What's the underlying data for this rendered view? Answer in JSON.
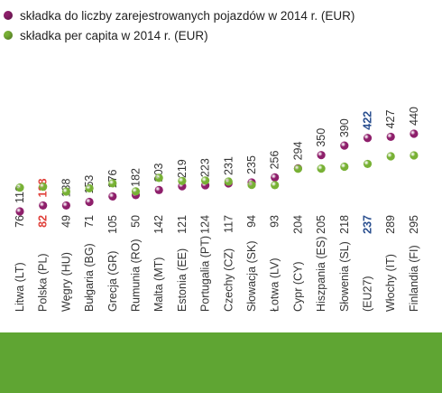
{
  "chart_data": {
    "type": "scatter",
    "title": "",
    "xlabel": "",
    "ylabel": "",
    "legend_position": "top-left",
    "categories": [
      "Litwa (LT)",
      "Polska (PL)",
      "Węgry (HU)",
      "Bułgaria (BG)",
      "Grecja (GR)",
      "Rumunia (RO)",
      "Malta (MT)",
      "Estonia (EE)",
      "Portugalia (PT)",
      "Czechy (CZ)",
      "Słowacja (SK)",
      "Łotwa (LV)",
      "Cypr (CY)",
      "Hiszpania (ES)",
      "Słowenia (SL)",
      "(EU27)",
      "Włochy (IT)",
      "Finlandia (FI)"
    ],
    "series": [
      {
        "name": "składka do liczby zarejestrowanych pojazdów w 2014 r. (EUR)",
        "color": "#8e1f6b",
        "values": [
          113,
          138,
          138,
          153,
          176,
          182,
          203,
          219,
          223,
          231,
          235,
          256,
          294,
          350,
          390,
          422,
          427,
          440
        ]
      },
      {
        "name": "składka per capita w 2014 r. (EUR)",
        "color": "#78b135",
        "values": [
          76,
          82,
          49,
          71,
          105,
          50,
          142,
          121,
          124,
          117,
          94,
          93,
          204,
          205,
          218,
          237,
          289,
          295
        ]
      }
    ],
    "highlight_colors": {
      "polska": "#e0403a",
      "eu27": "#2a4f8f"
    }
  },
  "footer_color": "#5fa533"
}
